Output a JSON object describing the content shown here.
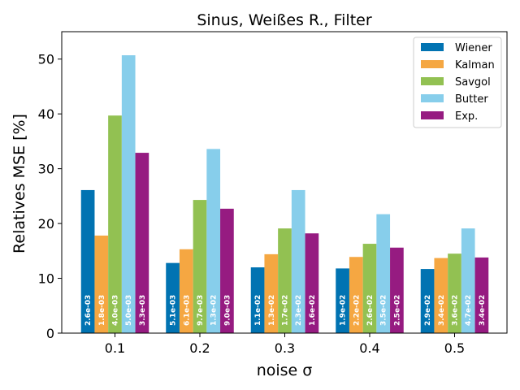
{
  "chart_data": {
    "type": "bar",
    "title": "Sinus, Weißes R., Filter",
    "xlabel": "noise σ",
    "ylabel": "Relatives MSE [%]",
    "categories": [
      "0.1",
      "0.2",
      "0.3",
      "0.4",
      "0.5"
    ],
    "ylim": [
      0,
      55
    ],
    "yticks": [
      0,
      10,
      20,
      30,
      40,
      50
    ],
    "grid": false,
    "legend_position": "top-right",
    "series": [
      {
        "name": "Wiener",
        "color": "#0173b2",
        "values": [
          26.1,
          12.8,
          12.0,
          11.8,
          11.7
        ],
        "labels": [
          "2.6e-03",
          "5.1e-03",
          "1.1e-02",
          "1.9e-02",
          "2.9e-02"
        ]
      },
      {
        "name": "Kalman",
        "color": "#f5a742",
        "values": [
          17.8,
          15.3,
          14.4,
          13.9,
          13.7
        ],
        "labels": [
          "1.8e-03",
          "6.1e-03",
          "1.3e-02",
          "2.2e-02",
          "3.4e-02"
        ]
      },
      {
        "name": "Savgol",
        "color": "#92c152",
        "values": [
          39.7,
          24.3,
          19.1,
          16.3,
          14.5
        ],
        "labels": [
          "4.0e-03",
          "9.7e-03",
          "1.7e-02",
          "2.6e-02",
          "3.6e-02"
        ]
      },
      {
        "name": "Butter",
        "color": "#87ceeb",
        "values": [
          50.7,
          33.6,
          26.1,
          21.7,
          19.1
        ],
        "labels": [
          "5.0e-03",
          "1.3e-02",
          "2.3e-02",
          "3.5e-02",
          "4.7e-02"
        ]
      },
      {
        "name": "Exp.",
        "color": "#961b81",
        "values": [
          32.9,
          22.7,
          18.2,
          15.6,
          13.8
        ],
        "labels": [
          "3.3e-03",
          "9.0e-03",
          "1.6e-02",
          "2.5e-02",
          "3.4e-02"
        ]
      }
    ]
  }
}
